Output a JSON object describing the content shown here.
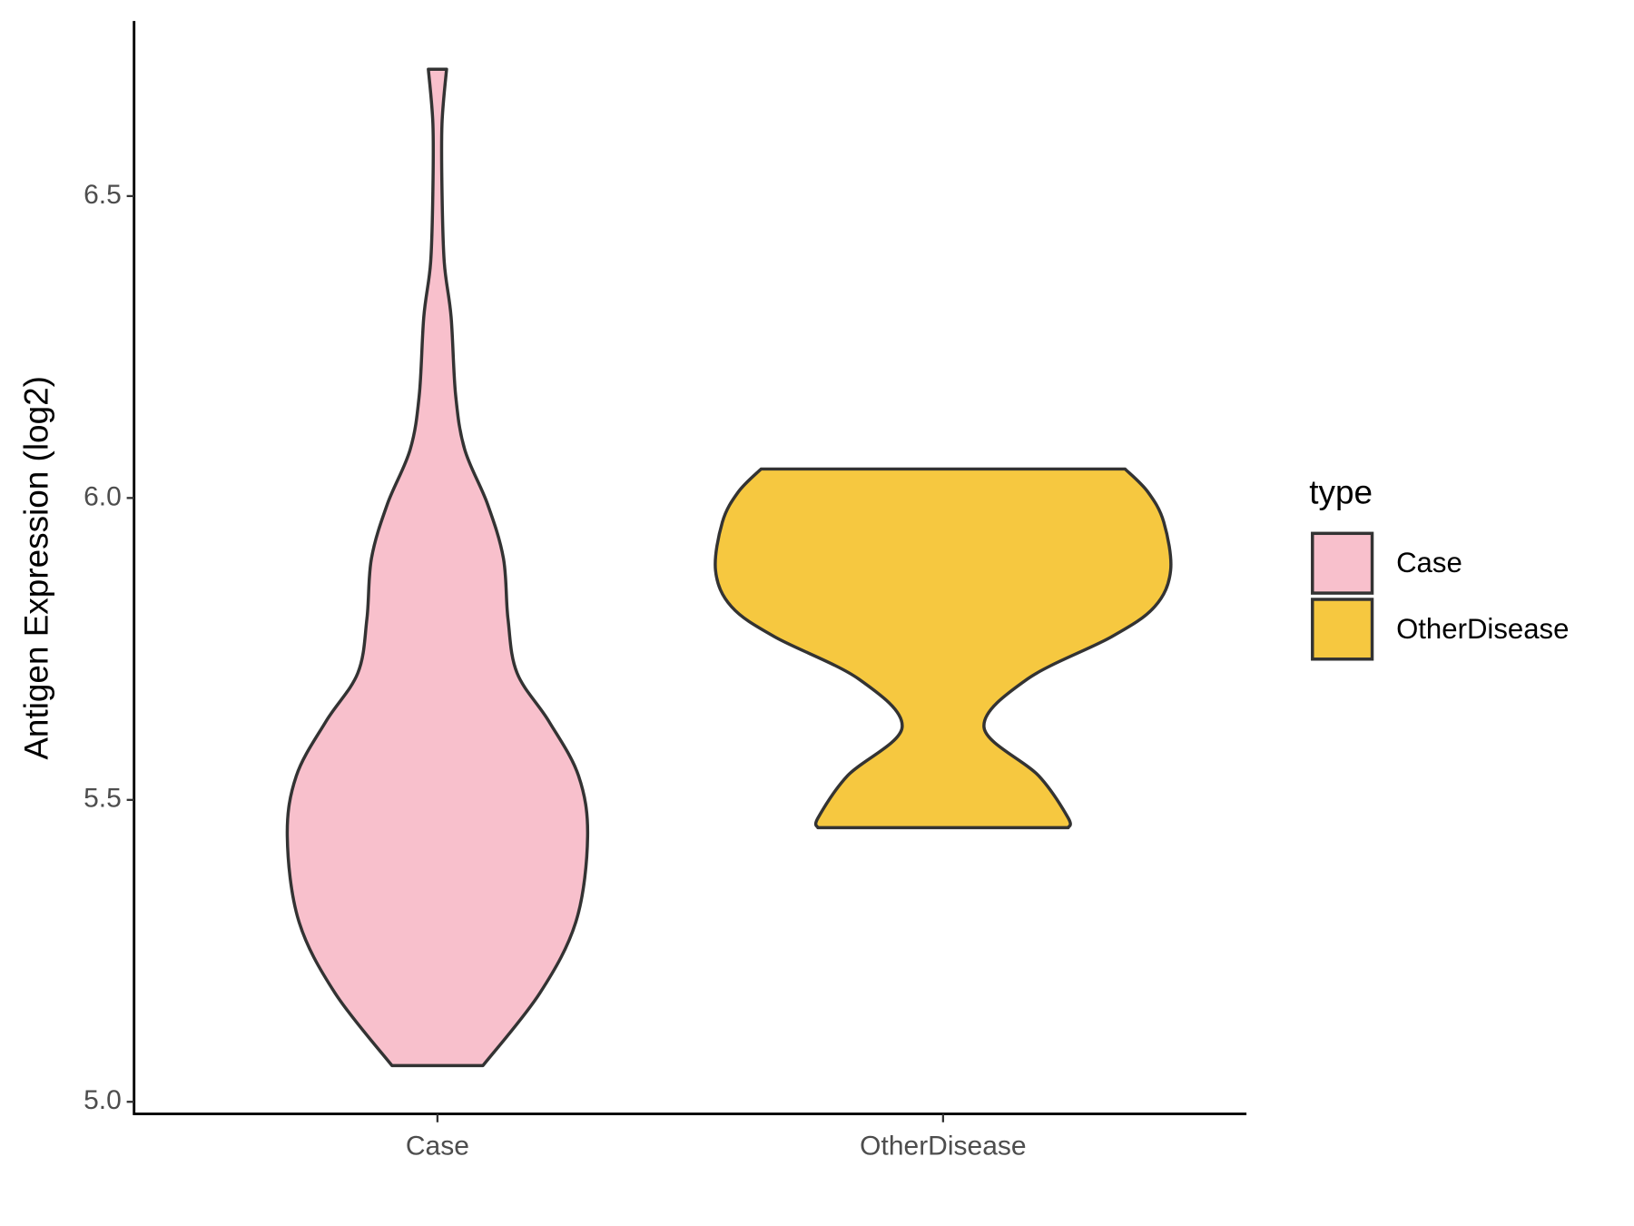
{
  "chart_data": {
    "type": "violin",
    "y_label": "Antigen Expression (log2)",
    "categories": [
      "Case",
      "OtherDisease"
    ],
    "ylim": [
      4.98,
      6.79
    ],
    "yticks": [
      {
        "value": 5,
        "label": "5.0"
      },
      5.5,
      {
        "value": 6,
        "label": "6.0"
      },
      6.5
    ],
    "legend_title": "type",
    "legend": "right",
    "series": [
      {
        "name": "Case",
        "color": "#f8c0cc",
        "y": [
          5.06,
          5.18,
          5.3,
          5.44,
          5.54,
          5.63,
          5.71,
          5.8,
          5.9,
          5.99,
          6.08,
          6.17,
          6.3,
          6.39,
          6.51,
          6.62,
          6.71
        ],
        "width": [
          0.2,
          0.45,
          0.61,
          0.66,
          0.62,
          0.49,
          0.35,
          0.31,
          0.29,
          0.22,
          0.12,
          0.08,
          0.06,
          0.03,
          0.02,
          0.02,
          0.04
        ]
      },
      {
        "name": "OtherDisease",
        "color": "#f6c840",
        "y": [
          5.454,
          5.47,
          5.54,
          5.62,
          5.7,
          5.77,
          5.82,
          5.88,
          5.96,
          6.01,
          6.048
        ],
        "width": [
          0.55,
          0.55,
          0.42,
          0.18,
          0.37,
          0.74,
          0.93,
          1,
          0.97,
          0.9,
          0.8
        ]
      }
    ]
  }
}
